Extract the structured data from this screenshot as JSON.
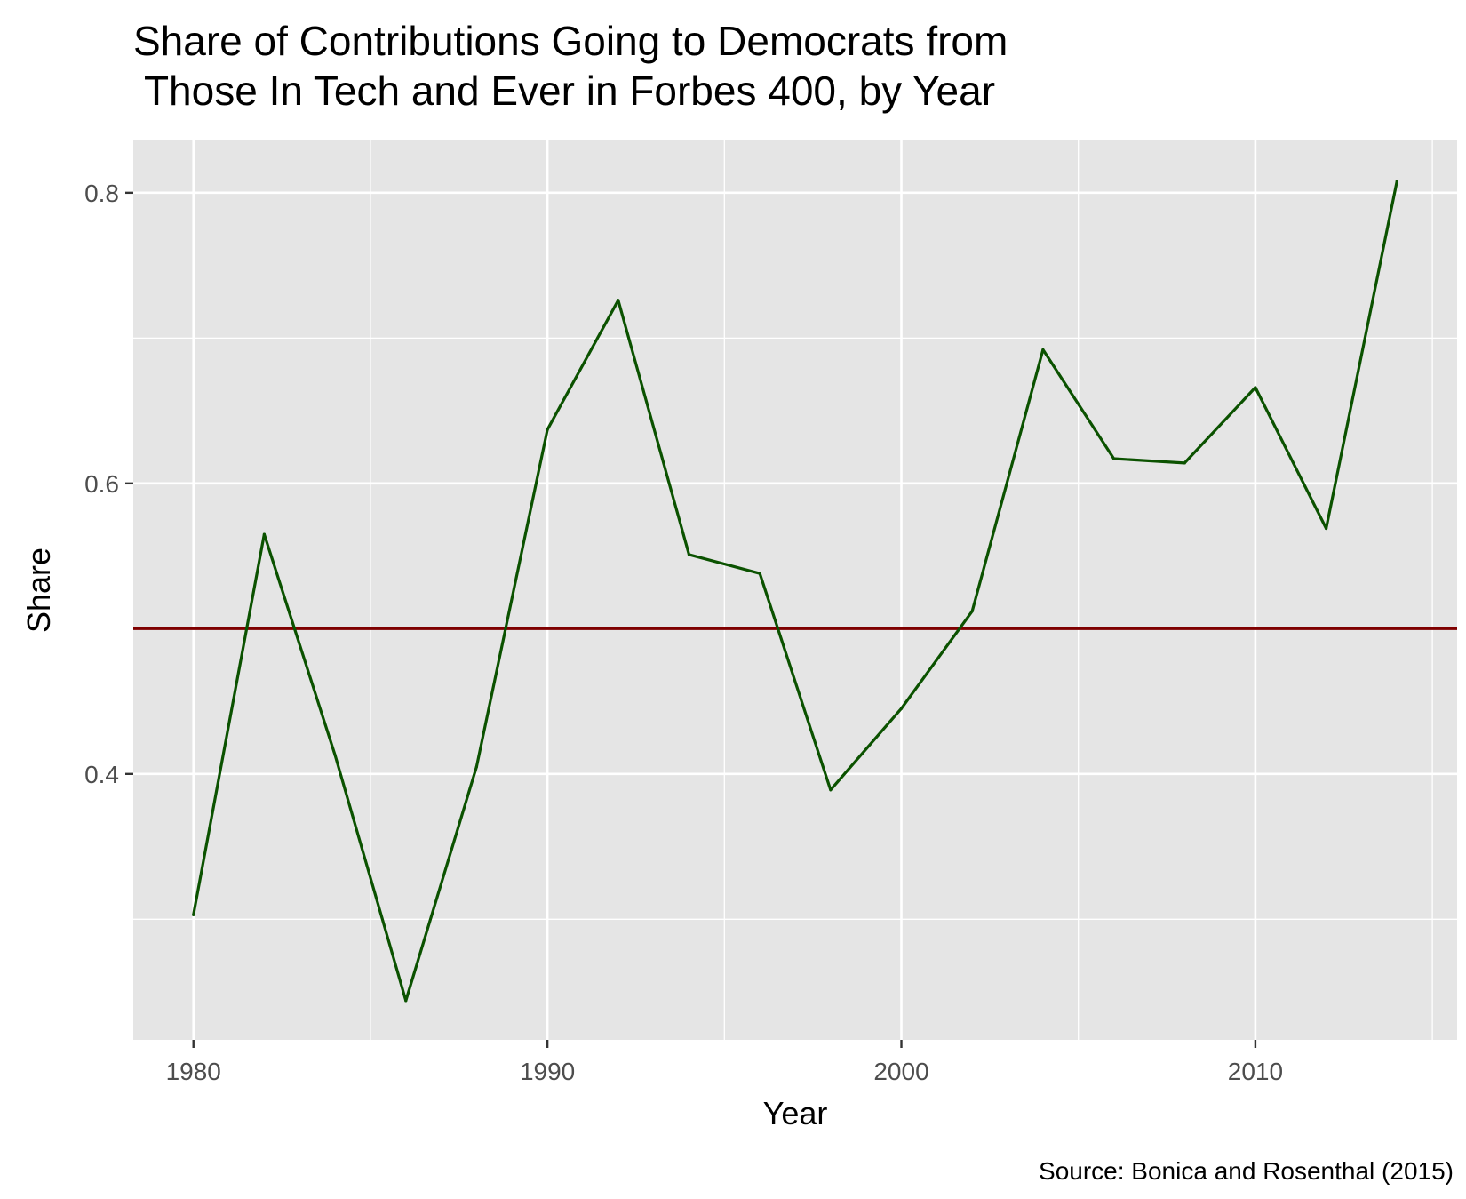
{
  "chart_data": {
    "type": "line",
    "title_lines": [
      "Share of Contributions Going to Democrats from",
      " Those In Tech and Ever in Forbes 400, by Year"
    ],
    "xlabel": "Year",
    "ylabel": "Share",
    "caption": "Source: Bonica and Rosenthal (2015)",
    "xlim": [
      1978.3,
      2015.7
    ],
    "ylim": [
      0.217,
      0.836
    ],
    "x_ticks": [
      1980,
      1990,
      2000,
      2010
    ],
    "x_tick_labels": [
      "1980",
      "1990",
      "2000",
      "2010"
    ],
    "x_minor_gridlines": [
      1985,
      1995,
      2005,
      2015
    ],
    "y_ticks": [
      0.4,
      0.6,
      0.8
    ],
    "y_tick_labels": [
      "0.4",
      "0.6",
      "0.8"
    ],
    "y_minor_gridlines": [
      0.3,
      0.5,
      0.7
    ],
    "grid": true,
    "panel_background": "#E5E5E5",
    "series": [
      {
        "color": "#0B5200",
        "x": [
          1980,
          1982,
          1984,
          1986,
          1988,
          1990,
          1992,
          1994,
          1996,
          1998,
          2000,
          2002,
          2004,
          2006,
          2008,
          2010,
          2012,
          2014
        ],
        "y": [
          0.303,
          0.565,
          0.413,
          0.244,
          0.405,
          0.637,
          0.726,
          0.551,
          0.538,
          0.389,
          0.445,
          0.512,
          0.692,
          0.617,
          0.614,
          0.666,
          0.569,
          0.808
        ]
      }
    ],
    "reference_lines": [
      {
        "type": "horizontal",
        "y": 0.5,
        "color": "#7F0000"
      }
    ]
  }
}
